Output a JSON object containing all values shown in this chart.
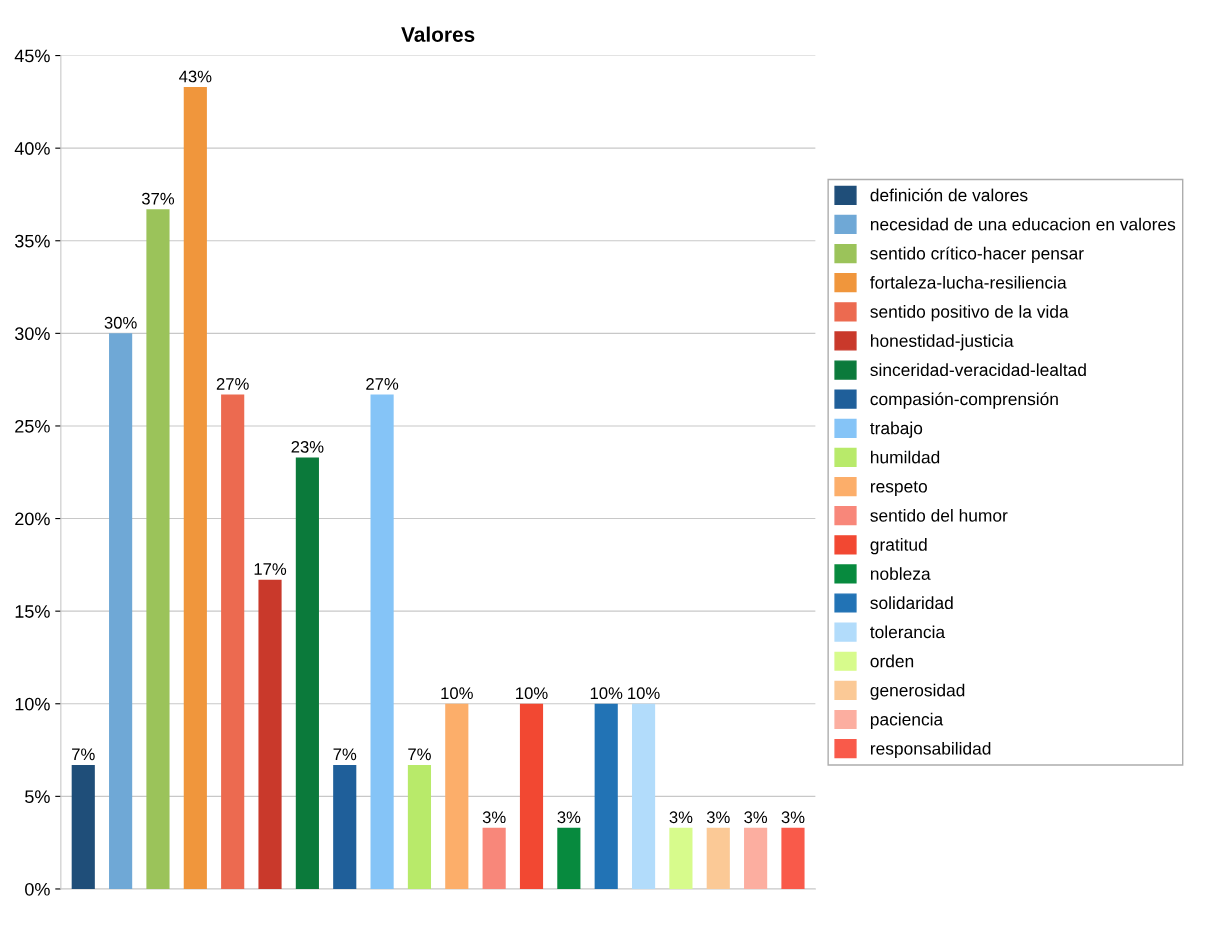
{
  "chart_data": {
    "type": "bar",
    "title": "Valores",
    "categories": [
      null,
      null,
      null,
      null,
      null,
      null,
      null,
      null,
      null,
      null,
      null,
      null,
      null,
      null,
      null,
      null,
      null,
      null,
      null,
      null
    ],
    "series": [
      {
        "name": "definición de valores",
        "color": "#1f4e79",
        "values": [
          6.7,
          null,
          null,
          null,
          null,
          null,
          null,
          null,
          null,
          null,
          null,
          null,
          null,
          null,
          null,
          null,
          null,
          null,
          null,
          null
        ],
        "value_labels": [
          "7%",
          null,
          null,
          null,
          null,
          null,
          null,
          null,
          null,
          null,
          null,
          null,
          null,
          null,
          null,
          null,
          null,
          null,
          null,
          null
        ]
      },
      {
        "name": "necesidad de una educacion en valores",
        "color": "#6fa8d6",
        "values": [
          null,
          30,
          null,
          null,
          null,
          null,
          null,
          null,
          null,
          null,
          null,
          null,
          null,
          null,
          null,
          null,
          null,
          null,
          null,
          null
        ],
        "value_labels": [
          null,
          "30%",
          null,
          null,
          null,
          null,
          null,
          null,
          null,
          null,
          null,
          null,
          null,
          null,
          null,
          null,
          null,
          null,
          null,
          null
        ]
      },
      {
        "name": "sentido crítico-hacer pensar",
        "color": "#9bc35a",
        "values": [
          null,
          null,
          36.7,
          null,
          null,
          null,
          null,
          null,
          null,
          null,
          null,
          null,
          null,
          null,
          null,
          null,
          null,
          null,
          null,
          null
        ],
        "value_labels": [
          null,
          null,
          "37%",
          null,
          null,
          null,
          null,
          null,
          null,
          null,
          null,
          null,
          null,
          null,
          null,
          null,
          null,
          null,
          null,
          null
        ]
      },
      {
        "name": "fortaleza-lucha-resiliencia",
        "color": "#f0963c",
        "values": [
          null,
          null,
          null,
          43.3,
          null,
          null,
          null,
          null,
          null,
          null,
          null,
          null,
          null,
          null,
          null,
          null,
          null,
          null,
          null,
          null
        ],
        "value_labels": [
          null,
          null,
          null,
          "43%",
          null,
          null,
          null,
          null,
          null,
          null,
          null,
          null,
          null,
          null,
          null,
          null,
          null,
          null,
          null,
          null
        ]
      },
      {
        "name": "sentido positivo de la vida",
        "color": "#ec6a50",
        "values": [
          null,
          null,
          null,
          null,
          26.7,
          null,
          null,
          null,
          null,
          null,
          null,
          null,
          null,
          null,
          null,
          null,
          null,
          null,
          null,
          null
        ],
        "value_labels": [
          null,
          null,
          null,
          null,
          "27%",
          null,
          null,
          null,
          null,
          null,
          null,
          null,
          null,
          null,
          null,
          null,
          null,
          null,
          null,
          null
        ]
      },
      {
        "name": "honestidad-justicia",
        "color": "#c9392b",
        "values": [
          null,
          null,
          null,
          null,
          null,
          16.7,
          null,
          null,
          null,
          null,
          null,
          null,
          null,
          null,
          null,
          null,
          null,
          null,
          null,
          null
        ],
        "value_labels": [
          null,
          null,
          null,
          null,
          null,
          "17%",
          null,
          null,
          null,
          null,
          null,
          null,
          null,
          null,
          null,
          null,
          null,
          null,
          null,
          null
        ]
      },
      {
        "name": "sinceridad-veracidad-lealtad",
        "color": "#0b7a3b",
        "values": [
          null,
          null,
          null,
          null,
          null,
          null,
          23.3,
          null,
          null,
          null,
          null,
          null,
          null,
          null,
          null,
          null,
          null,
          null,
          null,
          null
        ],
        "value_labels": [
          null,
          null,
          null,
          null,
          null,
          null,
          "23%",
          null,
          null,
          null,
          null,
          null,
          null,
          null,
          null,
          null,
          null,
          null,
          null,
          null
        ]
      },
      {
        "name": "compasión-comprensión",
        "color": "#1f5f9a",
        "values": [
          null,
          null,
          null,
          null,
          null,
          null,
          null,
          6.7,
          null,
          null,
          null,
          null,
          null,
          null,
          null,
          null,
          null,
          null,
          null,
          null
        ],
        "value_labels": [
          null,
          null,
          null,
          null,
          null,
          null,
          null,
          "7%",
          null,
          null,
          null,
          null,
          null,
          null,
          null,
          null,
          null,
          null,
          null,
          null
        ]
      },
      {
        "name": "trabajo",
        "color": "#85c4f7",
        "values": [
          null,
          null,
          null,
          null,
          null,
          null,
          null,
          null,
          26.7,
          null,
          null,
          null,
          null,
          null,
          null,
          null,
          null,
          null,
          null,
          null
        ],
        "value_labels": [
          null,
          null,
          null,
          null,
          null,
          null,
          null,
          null,
          "27%",
          null,
          null,
          null,
          null,
          null,
          null,
          null,
          null,
          null,
          null,
          null
        ]
      },
      {
        "name": "humildad",
        "color": "#b8ea6a",
        "values": [
          null,
          null,
          null,
          null,
          null,
          null,
          null,
          null,
          null,
          6.7,
          null,
          null,
          null,
          null,
          null,
          null,
          null,
          null,
          null,
          null
        ],
        "value_labels": [
          null,
          null,
          null,
          null,
          null,
          null,
          null,
          null,
          null,
          "7%",
          null,
          null,
          null,
          null,
          null,
          null,
          null,
          null,
          null,
          null
        ]
      },
      {
        "name": "respeto",
        "color": "#fcae6a",
        "values": [
          null,
          null,
          null,
          null,
          null,
          null,
          null,
          null,
          null,
          null,
          10,
          null,
          null,
          null,
          null,
          null,
          null,
          null,
          null,
          null
        ],
        "value_labels": [
          null,
          null,
          null,
          null,
          null,
          null,
          null,
          null,
          null,
          null,
          "10%",
          null,
          null,
          null,
          null,
          null,
          null,
          null,
          null,
          null
        ]
      },
      {
        "name": "sentido del humor",
        "color": "#f8877a",
        "values": [
          null,
          null,
          null,
          null,
          null,
          null,
          null,
          null,
          null,
          null,
          null,
          3.3,
          null,
          null,
          null,
          null,
          null,
          null,
          null,
          null
        ],
        "value_labels": [
          null,
          null,
          null,
          null,
          null,
          null,
          null,
          null,
          null,
          null,
          null,
          "3%",
          null,
          null,
          null,
          null,
          null,
          null,
          null,
          null
        ]
      },
      {
        "name": "gratitud",
        "color": "#f24832",
        "values": [
          null,
          null,
          null,
          null,
          null,
          null,
          null,
          null,
          null,
          null,
          null,
          null,
          10,
          null,
          null,
          null,
          null,
          null,
          null,
          null
        ],
        "value_labels": [
          null,
          null,
          null,
          null,
          null,
          null,
          null,
          null,
          null,
          null,
          null,
          null,
          "10%",
          null,
          null,
          null,
          null,
          null,
          null,
          null
        ]
      },
      {
        "name": "nobleza",
        "color": "#078a3e",
        "values": [
          null,
          null,
          null,
          null,
          null,
          null,
          null,
          null,
          null,
          null,
          null,
          null,
          null,
          3.3,
          null,
          null,
          null,
          null,
          null,
          null
        ],
        "value_labels": [
          null,
          null,
          null,
          null,
          null,
          null,
          null,
          null,
          null,
          null,
          null,
          null,
          null,
          "3%",
          null,
          null,
          null,
          null,
          null,
          null
        ]
      },
      {
        "name": "solidaridad",
        "color": "#2273b5",
        "values": [
          null,
          null,
          null,
          null,
          null,
          null,
          null,
          null,
          null,
          null,
          null,
          null,
          null,
          null,
          10,
          null,
          null,
          null,
          null,
          null
        ],
        "value_labels": [
          null,
          null,
          null,
          null,
          null,
          null,
          null,
          null,
          null,
          null,
          null,
          null,
          null,
          null,
          "10%",
          null,
          null,
          null,
          null,
          null
        ]
      },
      {
        "name": "tolerancia",
        "color": "#b2dcfb",
        "values": [
          null,
          null,
          null,
          null,
          null,
          null,
          null,
          null,
          null,
          null,
          null,
          null,
          null,
          null,
          null,
          10,
          null,
          null,
          null,
          null
        ],
        "value_labels": [
          null,
          null,
          null,
          null,
          null,
          null,
          null,
          null,
          null,
          null,
          null,
          null,
          null,
          null,
          null,
          "10%",
          null,
          null,
          null,
          null
        ]
      },
      {
        "name": "orden",
        "color": "#d7fb8c",
        "values": [
          null,
          null,
          null,
          null,
          null,
          null,
          null,
          null,
          null,
          null,
          null,
          null,
          null,
          null,
          null,
          null,
          3.3,
          null,
          null,
          null
        ],
        "value_labels": [
          null,
          null,
          null,
          null,
          null,
          null,
          null,
          null,
          null,
          null,
          null,
          null,
          null,
          null,
          null,
          null,
          "3%",
          null,
          null,
          null
        ]
      },
      {
        "name": "generosidad",
        "color": "#fbc996",
        "values": [
          null,
          null,
          null,
          null,
          null,
          null,
          null,
          null,
          null,
          null,
          null,
          null,
          null,
          null,
          null,
          null,
          null,
          3.3,
          null,
          null
        ],
        "value_labels": [
          null,
          null,
          null,
          null,
          null,
          null,
          null,
          null,
          null,
          null,
          null,
          null,
          null,
          null,
          null,
          null,
          null,
          "3%",
          null,
          null
        ]
      },
      {
        "name": "paciencia",
        "color": "#fcaea0",
        "values": [
          null,
          null,
          null,
          null,
          null,
          null,
          null,
          null,
          null,
          null,
          null,
          null,
          null,
          null,
          null,
          null,
          null,
          null,
          3.3,
          null
        ],
        "value_labels": [
          null,
          null,
          null,
          null,
          null,
          null,
          null,
          null,
          null,
          null,
          null,
          null,
          null,
          null,
          null,
          null,
          null,
          null,
          "3%",
          null
        ]
      },
      {
        "name": "responsabilidad",
        "color": "#f95a4a",
        "values": [
          null,
          null,
          null,
          null,
          null,
          null,
          null,
          null,
          null,
          null,
          null,
          null,
          null,
          null,
          null,
          null,
          null,
          null,
          null,
          3.3
        ],
        "value_labels": [
          null,
          null,
          null,
          null,
          null,
          null,
          null,
          null,
          null,
          null,
          null,
          null,
          null,
          null,
          null,
          null,
          null,
          null,
          null,
          "3%"
        ]
      }
    ],
    "ylim": [
      0,
      45
    ],
    "yticks": [
      {
        "value": 0,
        "label": "0%"
      },
      {
        "value": 5,
        "label": "5%"
      },
      {
        "value": 10,
        "label": "10%"
      },
      {
        "value": 15,
        "label": "15%"
      },
      {
        "value": 20,
        "label": "20%"
      },
      {
        "value": 25,
        "label": "25%"
      },
      {
        "value": 30,
        "label": "30%"
      },
      {
        "value": 35,
        "label": "35%"
      },
      {
        "value": 40,
        "label": "40%"
      },
      {
        "value": 45,
        "label": "45%"
      }
    ],
    "grid": "y",
    "legend": "right",
    "tick_labels": "y"
  }
}
